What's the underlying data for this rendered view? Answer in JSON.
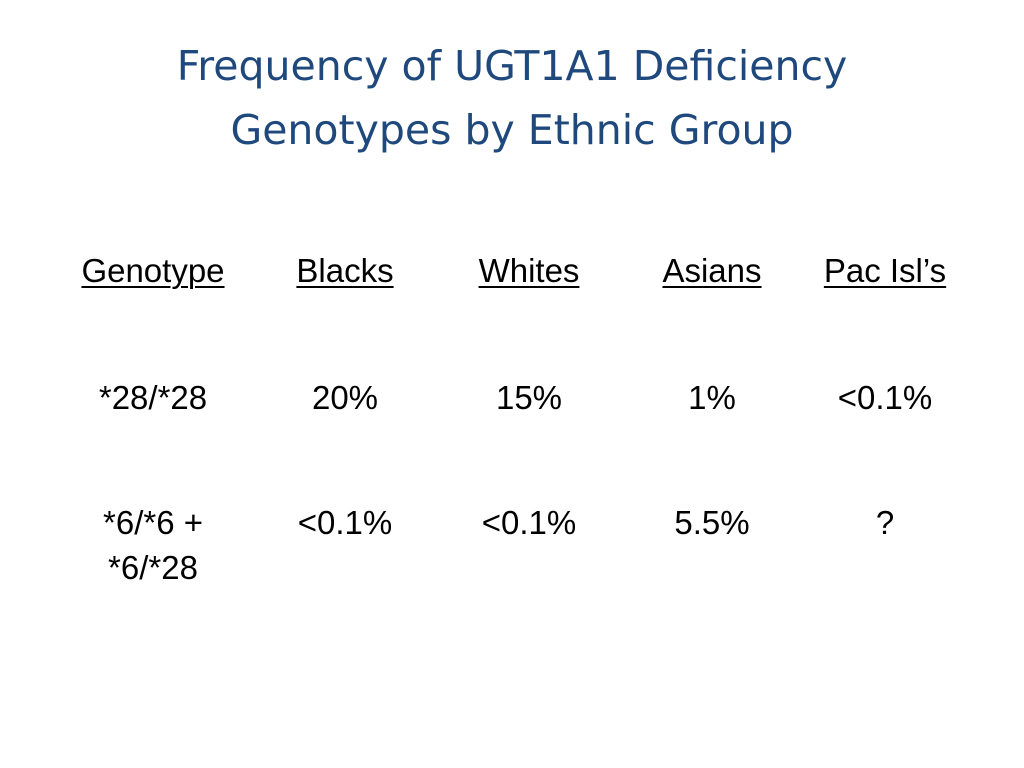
{
  "title": {
    "line1": "Frequency of UGT1A1 Deficiency",
    "line2": "Genotypes by Ethnic Group"
  },
  "table": {
    "headers": [
      "Genotype",
      "Blacks",
      "Whites",
      "Asians",
      "Pac Isl’s"
    ],
    "rows": [
      {
        "genotype_line1": "*28/*28",
        "genotype_line2": "",
        "values": [
          "20%",
          "15%",
          "1%",
          "<0.1%"
        ]
      },
      {
        "genotype_line1": "*6/*6 +",
        "genotype_line2": "*6/*28",
        "values": [
          "<0.1%",
          "<0.1%",
          "5.5%",
          "?"
        ]
      }
    ]
  },
  "colors": {
    "title": "#1F497D",
    "text": "#000000",
    "background": "#FFFFFF"
  }
}
